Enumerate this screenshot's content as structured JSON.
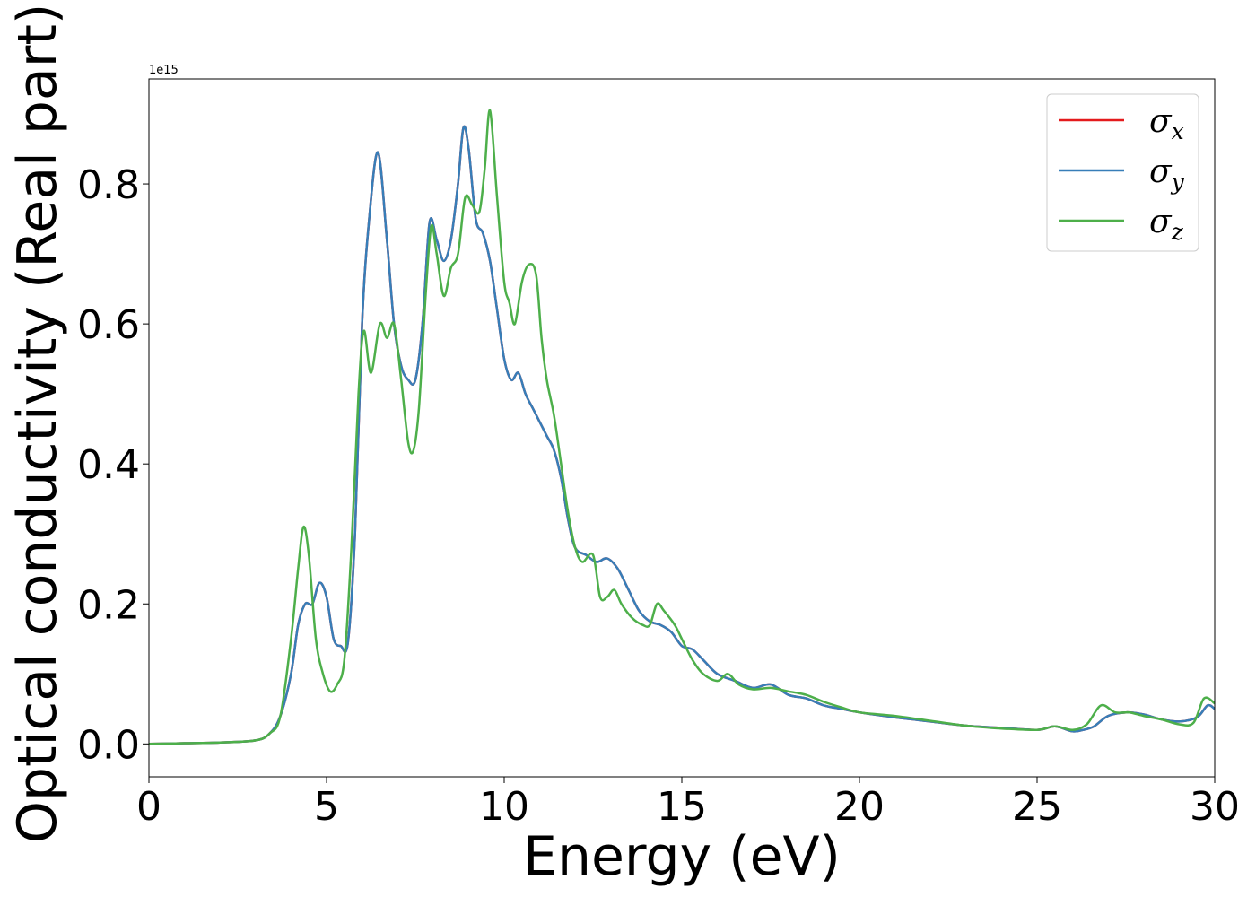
{
  "chart_data": {
    "type": "line",
    "title": "",
    "xlabel": "Energy (eV)",
    "ylabel": "Optical conductivity (Real part)",
    "y_offset_label": "1e15",
    "xlim": [
      0,
      30
    ],
    "ylim": [
      -0.047,
      0.95
    ],
    "x_ticks": [
      0,
      5,
      10,
      15,
      20,
      25,
      30
    ],
    "x_tick_labels": [
      "0",
      "5",
      "10",
      "15",
      "20",
      "25",
      "30"
    ],
    "y_ticks": [
      0.0,
      0.2,
      0.4,
      0.6,
      0.8
    ],
    "y_tick_labels": [
      "0.0",
      "0.2",
      "0.4",
      "0.6",
      "0.8"
    ],
    "grid": false,
    "legend_position": "top-right",
    "series": [
      {
        "name": "σ",
        "subscript": "x",
        "color": "#e41a1c",
        "x": [
          0,
          1,
          2,
          3,
          3.4,
          3.7,
          4.0,
          4.2,
          4.4,
          4.6,
          4.8,
          5.0,
          5.2,
          5.4,
          5.6,
          5.8,
          6.0,
          6.2,
          6.45,
          6.7,
          6.9,
          7.1,
          7.3,
          7.5,
          7.7,
          7.9,
          8.1,
          8.3,
          8.5,
          8.7,
          8.85,
          9.0,
          9.2,
          9.4,
          9.6,
          9.8,
          10.0,
          10.2,
          10.4,
          10.6,
          10.8,
          11.0,
          11.2,
          11.4,
          11.6,
          11.8,
          12.0,
          12.3,
          12.6,
          12.9,
          13.2,
          13.5,
          13.8,
          14.1,
          14.4,
          14.7,
          15.0,
          15.3,
          15.6,
          16.0,
          16.5,
          17.0,
          17.5,
          18.0,
          18.5,
          19.0,
          19.5,
          20.0,
          21.0,
          22.0,
          23.0,
          24.0,
          25.0,
          25.5,
          26.0,
          26.3,
          26.6,
          27.0,
          27.5,
          28.0,
          28.5,
          29.0,
          29.5,
          29.8,
          30.0
        ],
        "y": [
          0,
          0.001,
          0.002,
          0.005,
          0.015,
          0.04,
          0.1,
          0.17,
          0.2,
          0.2,
          0.23,
          0.21,
          0.15,
          0.14,
          0.145,
          0.3,
          0.6,
          0.75,
          0.845,
          0.72,
          0.6,
          0.54,
          0.52,
          0.52,
          0.6,
          0.745,
          0.72,
          0.69,
          0.72,
          0.8,
          0.88,
          0.85,
          0.75,
          0.73,
          0.69,
          0.62,
          0.55,
          0.52,
          0.53,
          0.5,
          0.48,
          0.46,
          0.44,
          0.42,
          0.38,
          0.32,
          0.28,
          0.27,
          0.26,
          0.265,
          0.25,
          0.22,
          0.19,
          0.175,
          0.17,
          0.16,
          0.14,
          0.135,
          0.12,
          0.1,
          0.09,
          0.08,
          0.085,
          0.07,
          0.065,
          0.055,
          0.05,
          0.045,
          0.038,
          0.032,
          0.026,
          0.023,
          0.02,
          0.025,
          0.018,
          0.02,
          0.025,
          0.04,
          0.045,
          0.042,
          0.035,
          0.032,
          0.038,
          0.055,
          0.05
        ]
      },
      {
        "name": "σ",
        "subscript": "y",
        "color": "#377eb8",
        "x": [
          0,
          1,
          2,
          3,
          3.4,
          3.7,
          4.0,
          4.2,
          4.4,
          4.6,
          4.8,
          5.0,
          5.2,
          5.4,
          5.6,
          5.8,
          6.0,
          6.2,
          6.45,
          6.7,
          6.9,
          7.1,
          7.3,
          7.5,
          7.7,
          7.9,
          8.1,
          8.3,
          8.5,
          8.7,
          8.85,
          9.0,
          9.2,
          9.4,
          9.6,
          9.8,
          10.0,
          10.2,
          10.4,
          10.6,
          10.8,
          11.0,
          11.2,
          11.4,
          11.6,
          11.8,
          12.0,
          12.3,
          12.6,
          12.9,
          13.2,
          13.5,
          13.8,
          14.1,
          14.4,
          14.7,
          15.0,
          15.3,
          15.6,
          16.0,
          16.5,
          17.0,
          17.5,
          18.0,
          18.5,
          19.0,
          19.5,
          20.0,
          21.0,
          22.0,
          23.0,
          24.0,
          25.0,
          25.5,
          26.0,
          26.3,
          26.6,
          27.0,
          27.5,
          28.0,
          28.5,
          29.0,
          29.5,
          29.8,
          30.0
        ],
        "y": [
          0,
          0.001,
          0.002,
          0.005,
          0.015,
          0.04,
          0.1,
          0.17,
          0.2,
          0.2,
          0.23,
          0.21,
          0.15,
          0.14,
          0.145,
          0.3,
          0.6,
          0.75,
          0.845,
          0.72,
          0.6,
          0.54,
          0.52,
          0.52,
          0.6,
          0.745,
          0.72,
          0.69,
          0.72,
          0.8,
          0.88,
          0.85,
          0.75,
          0.73,
          0.69,
          0.62,
          0.55,
          0.52,
          0.53,
          0.5,
          0.48,
          0.46,
          0.44,
          0.42,
          0.38,
          0.32,
          0.28,
          0.27,
          0.26,
          0.265,
          0.25,
          0.22,
          0.19,
          0.175,
          0.17,
          0.16,
          0.14,
          0.135,
          0.12,
          0.1,
          0.09,
          0.08,
          0.085,
          0.07,
          0.065,
          0.055,
          0.05,
          0.045,
          0.038,
          0.032,
          0.026,
          0.023,
          0.02,
          0.025,
          0.018,
          0.02,
          0.025,
          0.04,
          0.045,
          0.042,
          0.035,
          0.032,
          0.038,
          0.055,
          0.05
        ]
      },
      {
        "name": "σ",
        "subscript": "z",
        "color": "#4daf4a",
        "x": [
          0,
          1,
          2,
          3,
          3.4,
          3.7,
          4.0,
          4.2,
          4.35,
          4.5,
          4.7,
          4.9,
          5.1,
          5.3,
          5.5,
          5.7,
          5.9,
          6.05,
          6.25,
          6.5,
          6.7,
          6.9,
          7.1,
          7.3,
          7.45,
          7.6,
          7.8,
          7.95,
          8.1,
          8.3,
          8.5,
          8.7,
          8.9,
          9.1,
          9.3,
          9.45,
          9.6,
          9.8,
          10.0,
          10.15,
          10.3,
          10.5,
          10.7,
          10.9,
          11.05,
          11.2,
          11.4,
          11.6,
          11.8,
          12.0,
          12.2,
          12.5,
          12.7,
          12.9,
          13.1,
          13.3,
          13.6,
          13.9,
          14.1,
          14.3,
          14.5,
          14.8,
          15.0,
          15.3,
          15.6,
          16.0,
          16.3,
          16.6,
          17.0,
          17.5,
          18.0,
          18.5,
          19.0,
          19.5,
          20.0,
          21.0,
          22.0,
          23.0,
          24.0,
          25.0,
          25.5,
          26.0,
          26.4,
          26.8,
          27.2,
          27.6,
          28.0,
          28.5,
          29.0,
          29.4,
          29.7,
          30.0
        ],
        "y": [
          0,
          0.001,
          0.002,
          0.005,
          0.015,
          0.04,
          0.15,
          0.25,
          0.31,
          0.27,
          0.15,
          0.1,
          0.075,
          0.085,
          0.12,
          0.28,
          0.5,
          0.59,
          0.53,
          0.6,
          0.58,
          0.6,
          0.52,
          0.43,
          0.42,
          0.48,
          0.65,
          0.74,
          0.7,
          0.64,
          0.68,
          0.7,
          0.78,
          0.77,
          0.76,
          0.82,
          0.905,
          0.78,
          0.66,
          0.63,
          0.6,
          0.66,
          0.685,
          0.67,
          0.58,
          0.52,
          0.47,
          0.4,
          0.33,
          0.28,
          0.26,
          0.27,
          0.21,
          0.21,
          0.22,
          0.2,
          0.18,
          0.17,
          0.17,
          0.2,
          0.19,
          0.17,
          0.15,
          0.12,
          0.1,
          0.09,
          0.1,
          0.085,
          0.078,
          0.08,
          0.075,
          0.07,
          0.06,
          0.052,
          0.045,
          0.04,
          0.033,
          0.026,
          0.022,
          0.02,
          0.025,
          0.02,
          0.028,
          0.055,
          0.045,
          0.045,
          0.04,
          0.035,
          0.028,
          0.03,
          0.065,
          0.058
        ]
      }
    ]
  }
}
